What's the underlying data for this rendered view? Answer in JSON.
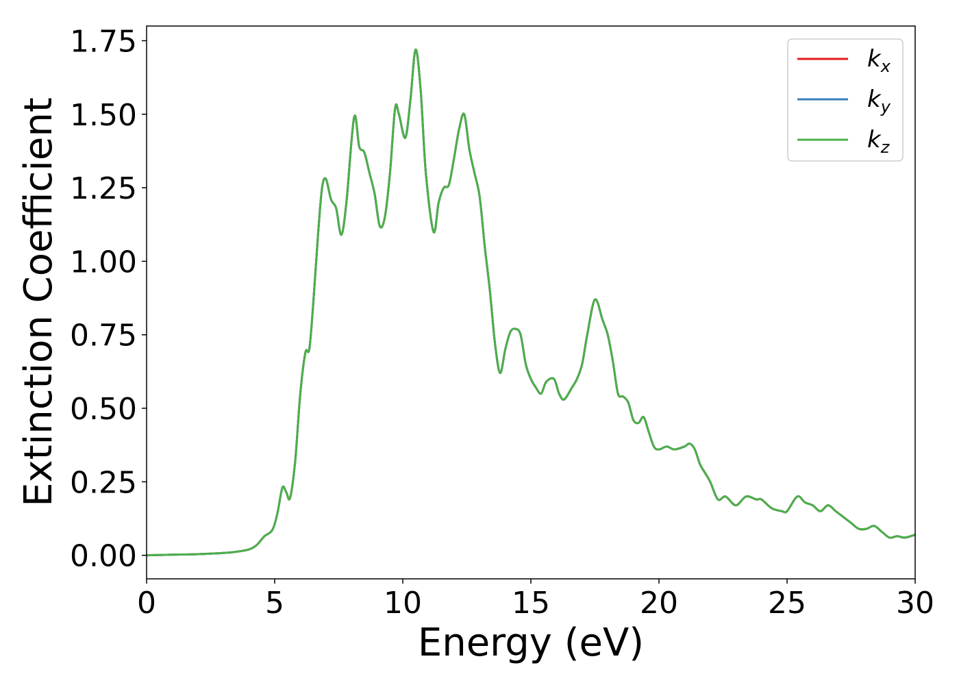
{
  "chart_data": {
    "type": "line",
    "xlabel": "Energy (eV)",
    "ylabel": "Extinction Coefficient",
    "xlim": [
      0,
      30
    ],
    "ylim": [
      -0.08,
      1.8
    ],
    "x_ticks": [
      "0",
      "5",
      "10",
      "15",
      "20",
      "25",
      "30"
    ],
    "y_ticks": [
      "0.00",
      "0.25",
      "0.50",
      "0.75",
      "1.00",
      "1.25",
      "1.50",
      "1.75"
    ],
    "x_tick_values": [
      0,
      5,
      10,
      15,
      20,
      25,
      30
    ],
    "y_tick_values": [
      0,
      0.25,
      0.5,
      0.75,
      1.0,
      1.25,
      1.5,
      1.75
    ],
    "grid": false,
    "legend_position": "top-right",
    "series": [
      {
        "name": "k_x",
        "label_base": "k",
        "label_sub": "x",
        "color": "#e41a1c"
      },
      {
        "name": "k_y",
        "label_base": "k",
        "label_sub": "y",
        "color": "#377eb8"
      },
      {
        "name": "k_z",
        "label_base": "k",
        "label_sub": "z",
        "color": "#4daf4a"
      }
    ],
    "x": [
      0,
      1,
      2,
      3,
      3.5,
      4,
      4.3,
      4.6,
      4.9,
      5.1,
      5.3,
      5.45,
      5.6,
      5.8,
      6.0,
      6.2,
      6.35,
      6.5,
      6.7,
      6.85,
      7.0,
      7.2,
      7.4,
      7.6,
      7.8,
      8.1,
      8.3,
      8.5,
      8.7,
      8.9,
      9.1,
      9.3,
      9.5,
      9.7,
      9.85,
      10.1,
      10.3,
      10.5,
      10.7,
      10.9,
      11.2,
      11.4,
      11.6,
      11.8,
      12.0,
      12.2,
      12.4,
      12.6,
      12.8,
      13.0,
      13.2,
      13.4,
      13.6,
      13.8,
      14.0,
      14.2,
      14.4,
      14.6,
      14.8,
      15.0,
      15.2,
      15.4,
      15.6,
      15.9,
      16.1,
      16.3,
      16.6,
      16.8,
      17.0,
      17.2,
      17.5,
      17.8,
      18.0,
      18.2,
      18.4,
      18.6,
      18.8,
      19.0,
      19.2,
      19.4,
      19.6,
      19.8,
      20.0,
      20.3,
      20.6,
      21.0,
      21.2,
      21.4,
      21.6,
      21.8,
      22.0,
      22.3,
      22.6,
      23.0,
      23.4,
      23.8,
      24.0,
      24.4,
      24.8,
      25.0,
      25.4,
      25.7,
      26.0,
      26.3,
      26.6,
      26.9,
      27.2,
      27.5,
      27.8,
      28.1,
      28.4,
      28.7,
      29.0,
      29.3,
      29.6,
      30.0
    ],
    "values": [
      0.0,
      0.002,
      0.004,
      0.008,
      0.012,
      0.02,
      0.035,
      0.065,
      0.085,
      0.14,
      0.23,
      0.215,
      0.195,
      0.32,
      0.55,
      0.69,
      0.7,
      0.85,
      1.1,
      1.25,
      1.28,
      1.21,
      1.18,
      1.09,
      1.2,
      1.49,
      1.39,
      1.37,
      1.3,
      1.23,
      1.12,
      1.15,
      1.3,
      1.52,
      1.5,
      1.42,
      1.55,
      1.72,
      1.58,
      1.3,
      1.1,
      1.2,
      1.25,
      1.26,
      1.35,
      1.45,
      1.5,
      1.38,
      1.3,
      1.22,
      1.05,
      0.9,
      0.72,
      0.62,
      0.7,
      0.76,
      0.77,
      0.75,
      0.65,
      0.6,
      0.57,
      0.55,
      0.59,
      0.6,
      0.55,
      0.53,
      0.57,
      0.6,
      0.65,
      0.75,
      0.87,
      0.8,
      0.75,
      0.66,
      0.55,
      0.54,
      0.52,
      0.46,
      0.45,
      0.47,
      0.42,
      0.37,
      0.36,
      0.37,
      0.36,
      0.37,
      0.38,
      0.36,
      0.31,
      0.28,
      0.25,
      0.19,
      0.2,
      0.17,
      0.2,
      0.19,
      0.19,
      0.16,
      0.15,
      0.15,
      0.2,
      0.18,
      0.17,
      0.15,
      0.17,
      0.15,
      0.13,
      0.11,
      0.09,
      0.09,
      0.1,
      0.08,
      0.06,
      0.065,
      0.06,
      0.07
    ]
  }
}
